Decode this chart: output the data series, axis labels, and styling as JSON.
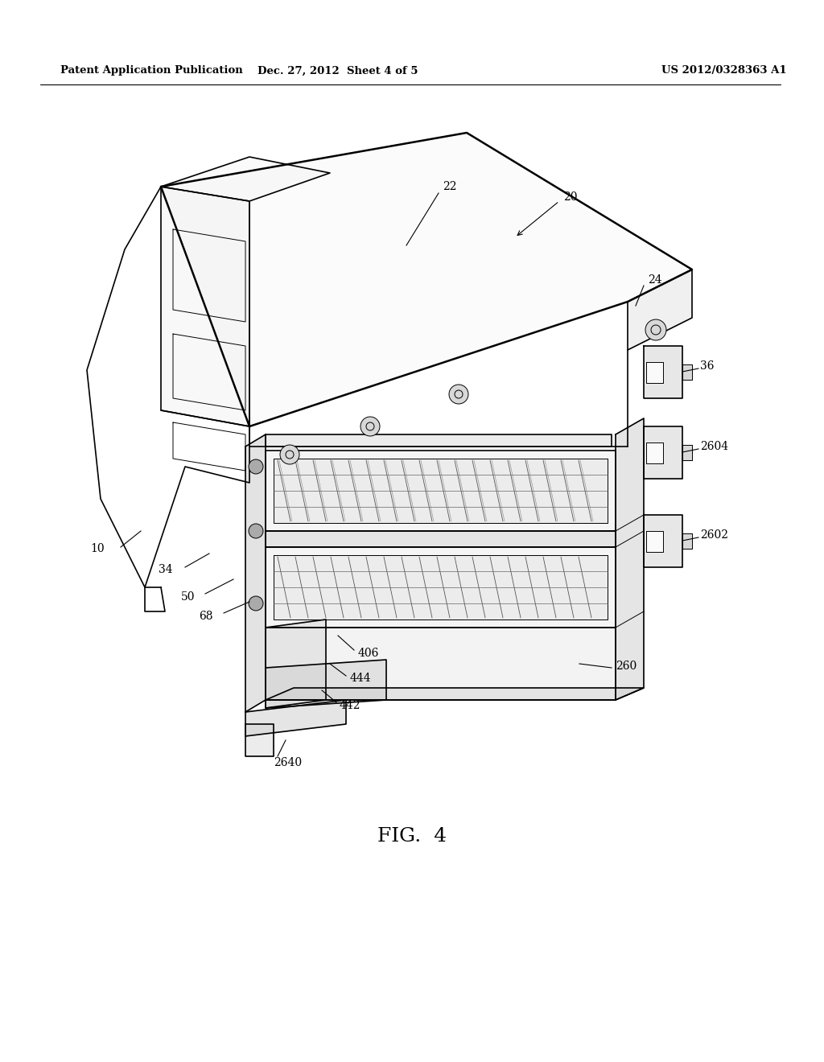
{
  "bg_color": "#ffffff",
  "line_color": "#000000",
  "header_left": "Patent Application Publication",
  "header_mid": "Dec. 27, 2012  Sheet 4 of 5",
  "header_right": "US 2012/0328363 A1",
  "fig_label": "FIG.  4",
  "lw_thick": 1.8,
  "lw_med": 1.2,
  "lw_thin": 0.7,
  "lw_hair": 0.5
}
